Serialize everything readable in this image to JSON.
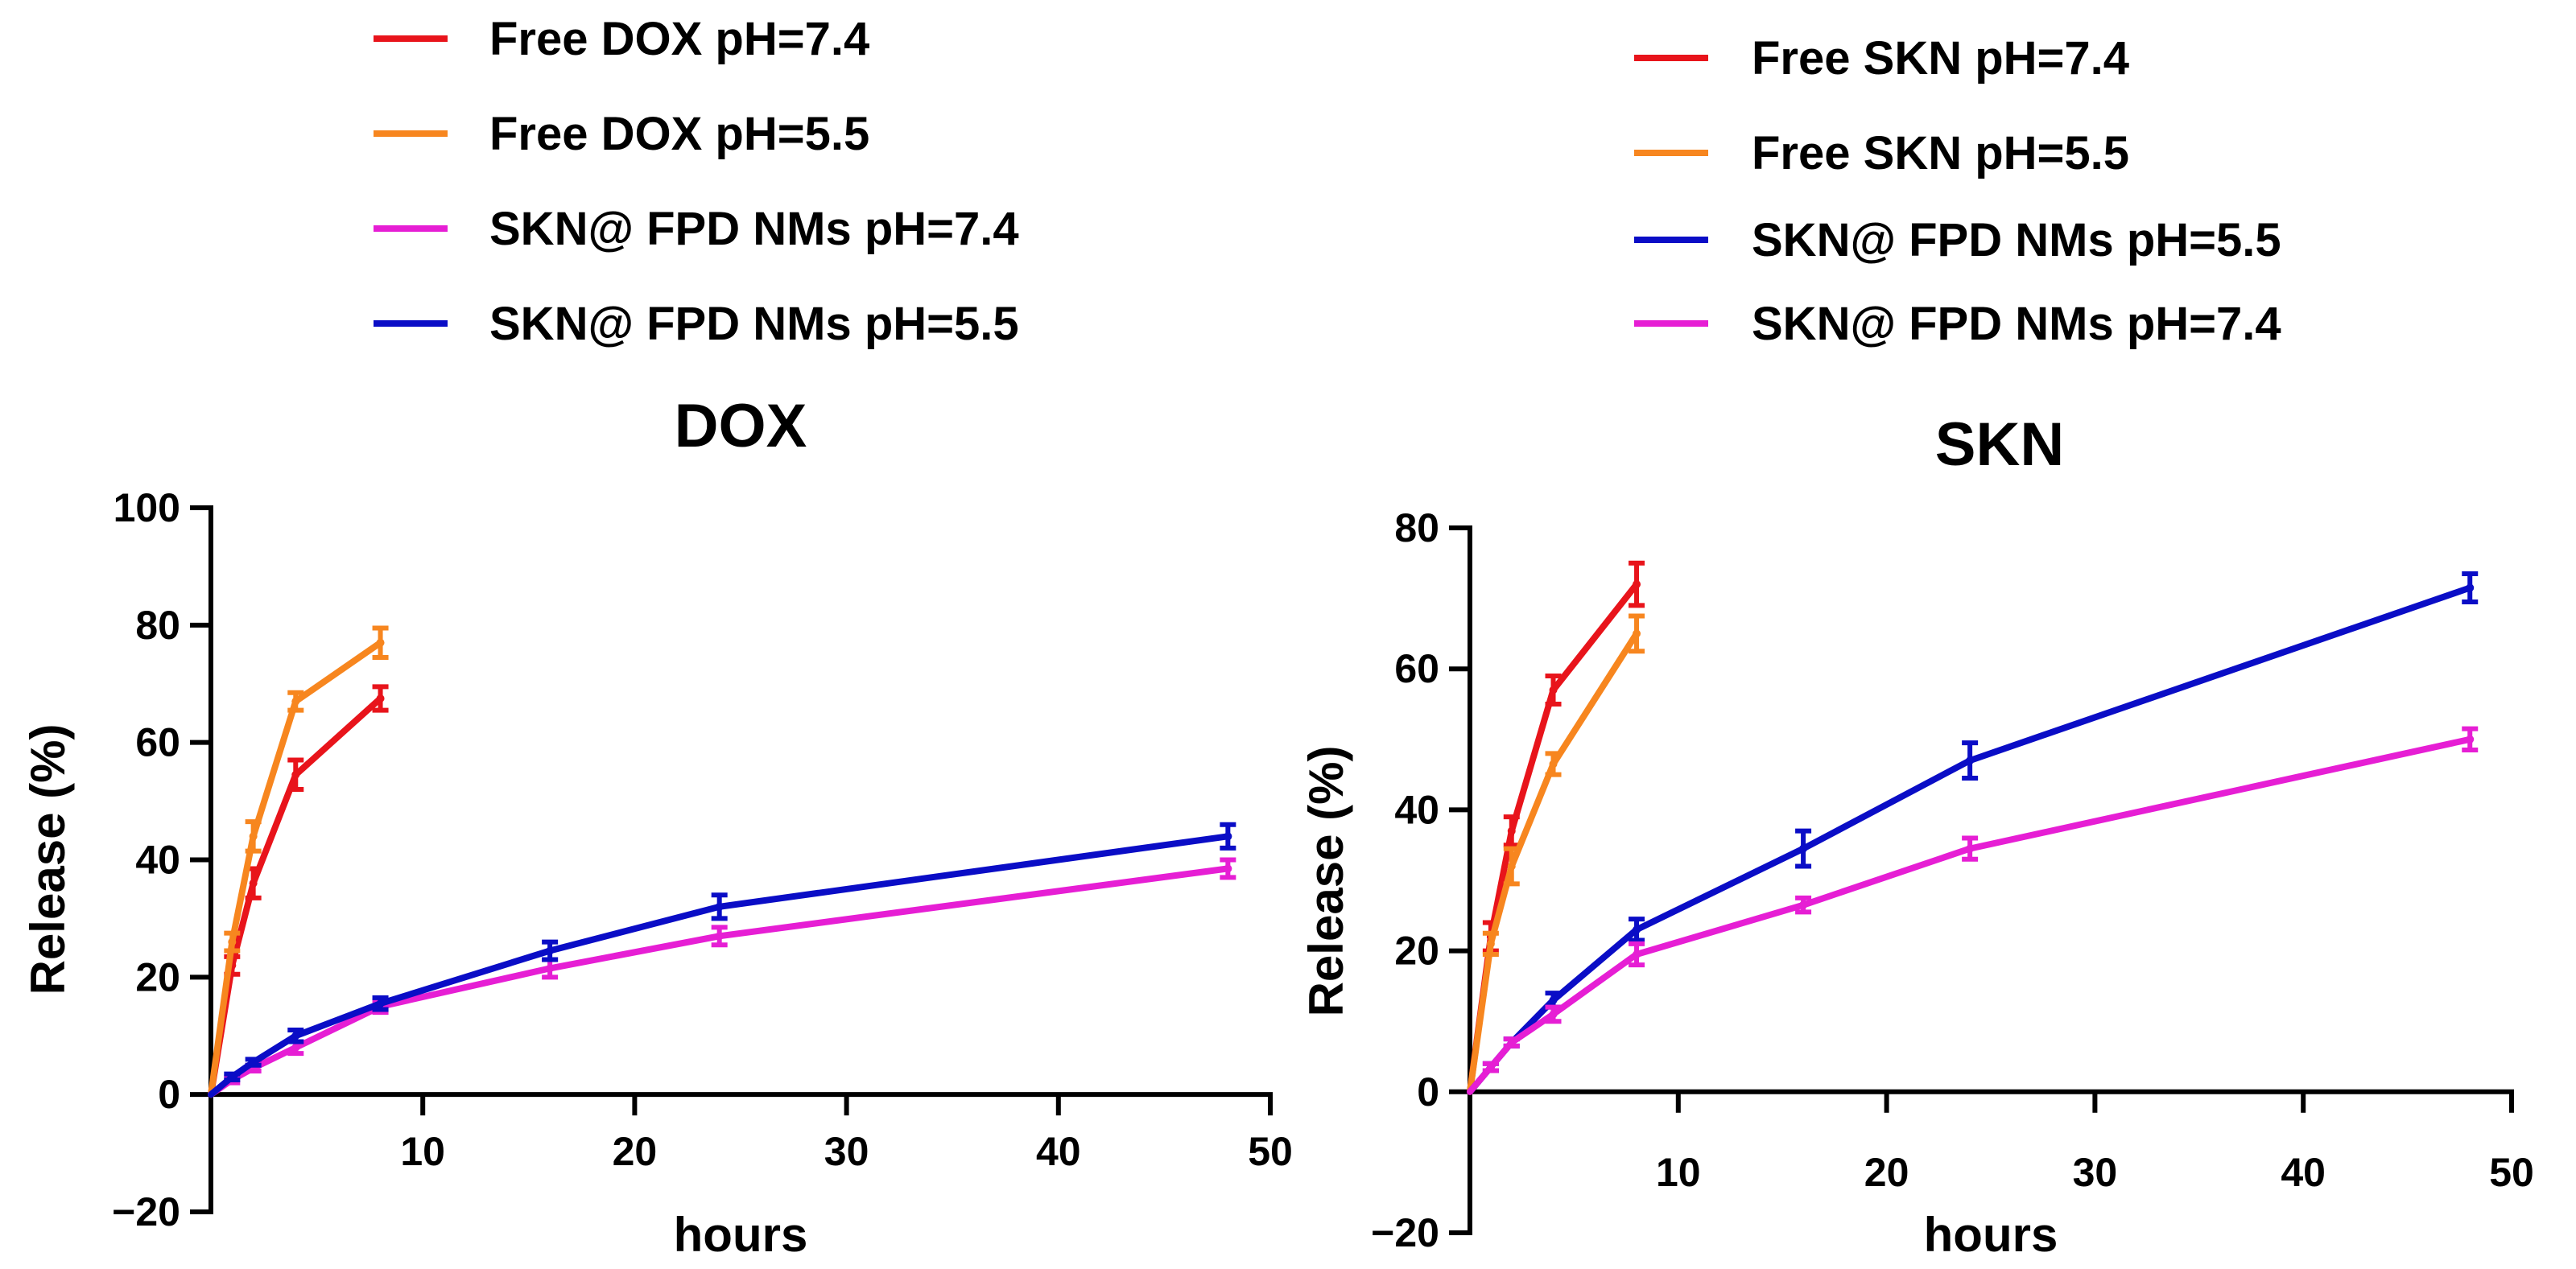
{
  "chart_data": [
    {
      "type": "line",
      "title": "DOX",
      "xlabel": "hours",
      "ylabel": "Release (%)",
      "xlim": [
        0,
        50
      ],
      "ylim": [
        -20,
        100
      ],
      "xticks": [
        "10",
        "20",
        "30",
        "40",
        "50"
      ],
      "yticks": [
        "−20",
        "0",
        "20",
        "40",
        "60",
        "80",
        "100"
      ],
      "legend_position": "above",
      "series": [
        {
          "name": "Free DOX pH=7.4",
          "color": "#e8141b",
          "x": [
            0,
            1,
            2,
            4,
            8
          ],
          "y": [
            0,
            22,
            36,
            54.5,
            67.5
          ],
          "err": [
            0,
            1.5,
            2.5,
            2.5,
            2
          ]
        },
        {
          "name": "Free DOX pH=5.5",
          "color": "#f7861f",
          "x": [
            0,
            1,
            2,
            4,
            8
          ],
          "y": [
            0,
            26,
            44,
            67,
            77
          ],
          "err": [
            0,
            1.5,
            2.5,
            1.5,
            2.5
          ]
        },
        {
          "name": "SKN@ FPD NMs pH=7.4",
          "color": "#e61ed4",
          "x": [
            0,
            1,
            2,
            4,
            8,
            16,
            24,
            48
          ],
          "y": [
            0,
            2.5,
            4.5,
            8,
            15,
            21.5,
            27,
            38.5
          ],
          "err": [
            0,
            0.5,
            0.5,
            1,
            1,
            1.5,
            1.5,
            1.5
          ]
        },
        {
          "name": "SKN@ FPD NMs pH=5.5",
          "color": "#0a0dc6",
          "x": [
            0,
            1,
            2,
            4,
            8,
            16,
            24,
            48
          ],
          "y": [
            0,
            3,
            5.5,
            10,
            15.5,
            24.5,
            32,
            44
          ],
          "err": [
            0,
            0.5,
            0.5,
            1,
            1,
            1.5,
            2,
            2
          ]
        }
      ]
    },
    {
      "type": "line",
      "title": "SKN",
      "xlabel": "hours",
      "ylabel": "Release (%)",
      "xlim": [
        0,
        50
      ],
      "ylim": [
        -20,
        80
      ],
      "xticks": [
        "10",
        "20",
        "30",
        "40",
        "50"
      ],
      "yticks": [
        "−20",
        "0",
        "20",
        "40",
        "60",
        "80"
      ],
      "legend_position": "above",
      "series": [
        {
          "name": "Free SKN pH=7.4",
          "color": "#e8141b",
          "x": [
            0,
            1,
            2,
            4,
            8
          ],
          "y": [
            0,
            22,
            37,
            57,
            72
          ],
          "err": [
            0,
            2,
            2,
            2,
            3
          ]
        },
        {
          "name": "Free SKN pH=5.5",
          "color": "#f7861f",
          "x": [
            0,
            1,
            2,
            4,
            8
          ],
          "y": [
            0,
            21,
            32,
            46.5,
            65
          ],
          "err": [
            0,
            1.5,
            2.5,
            1.5,
            2.5
          ]
        },
        {
          "name": "SKN@ FPD NMs pH=5.5",
          "color": "#0a0dc6",
          "x": [
            0,
            1,
            2,
            4,
            8,
            16,
            24,
            48
          ],
          "y": [
            0,
            3.5,
            7,
            13,
            23,
            34.5,
            47,
            71.5
          ],
          "err": [
            0,
            0.5,
            0.5,
            1,
            1.5,
            2.5,
            2.5,
            2
          ]
        },
        {
          "name": "SKN@ FPD NMs pH=7.4",
          "color": "#e61ed4",
          "x": [
            0,
            1,
            2,
            4,
            8,
            16,
            24,
            48
          ],
          "y": [
            0,
            3.5,
            7,
            11,
            19.5,
            26.5,
            34.5,
            50
          ],
          "err": [
            0,
            0.5,
            0.5,
            1,
            1.5,
            1,
            1.5,
            1.5
          ]
        }
      ]
    }
  ]
}
